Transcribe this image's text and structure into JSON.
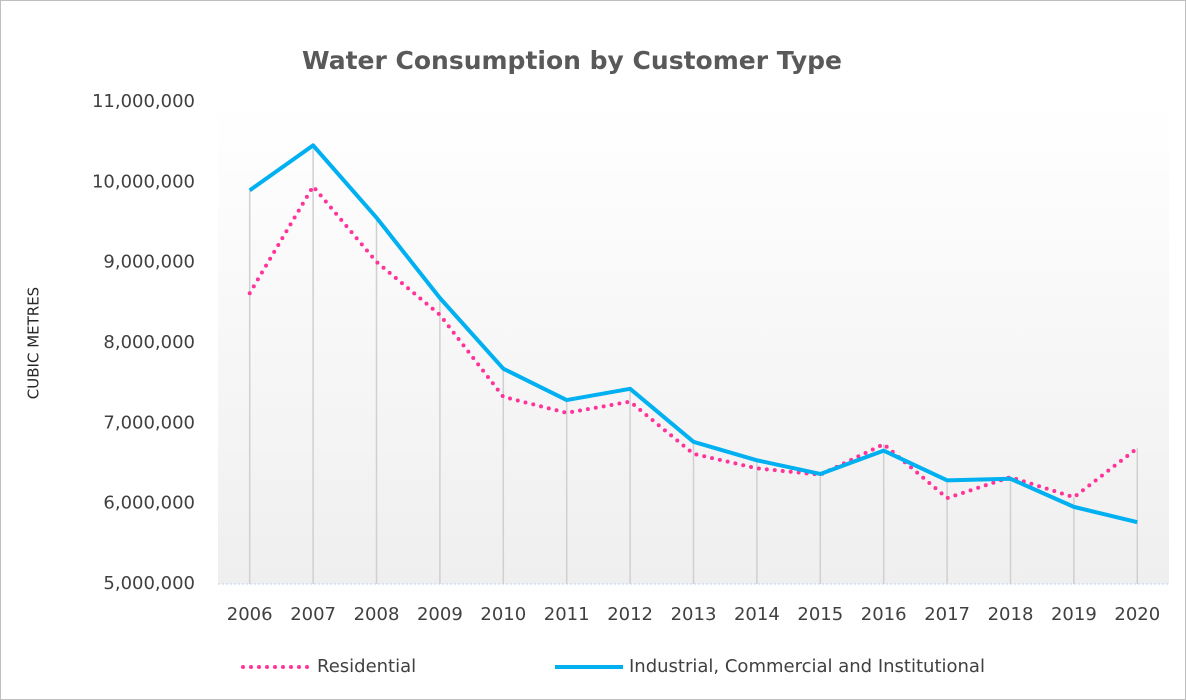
{
  "chart_data": {
    "type": "line",
    "title": "Water Consumption by Customer Type",
    "y_label": "CUBIC METRES",
    "categories": [
      "2006",
      "2007",
      "2008",
      "2009",
      "2010",
      "2011",
      "2012",
      "2013",
      "2014",
      "2015",
      "2016",
      "2017",
      "2018",
      "2019",
      "2020"
    ],
    "series": [
      {
        "name": "Residential",
        "color": "#ff3399",
        "style": "dotted",
        "values": [
          8620000,
          9950000,
          9010000,
          8350000,
          7330000,
          7130000,
          7270000,
          6620000,
          6440000,
          6360000,
          6740000,
          6070000,
          6330000,
          6080000,
          6690000
        ]
      },
      {
        "name": "Industrial, Commercial and Institutional",
        "color": "#00b0f0",
        "style": "solid",
        "values": [
          9900000,
          10460000,
          9560000,
          8560000,
          7680000,
          7290000,
          7430000,
          6770000,
          6540000,
          6370000,
          6660000,
          6290000,
          6310000,
          5960000,
          5770000
        ]
      }
    ],
    "ylim": [
      5000000,
      11000000
    ],
    "yticks": [
      {
        "value": 5000000,
        "label": "5,000,000"
      },
      {
        "value": 6000000,
        "label": "6,000,000"
      },
      {
        "value": 7000000,
        "label": "7,000,000"
      },
      {
        "value": 8000000,
        "label": "8,000,000"
      },
      {
        "value": 9000000,
        "label": "9,000,000"
      },
      {
        "value": 10000000,
        "label": "10,000,000"
      },
      {
        "value": 11000000,
        "label": "11,000,000"
      }
    ],
    "drop_lines": true,
    "legend": "bottom"
  }
}
